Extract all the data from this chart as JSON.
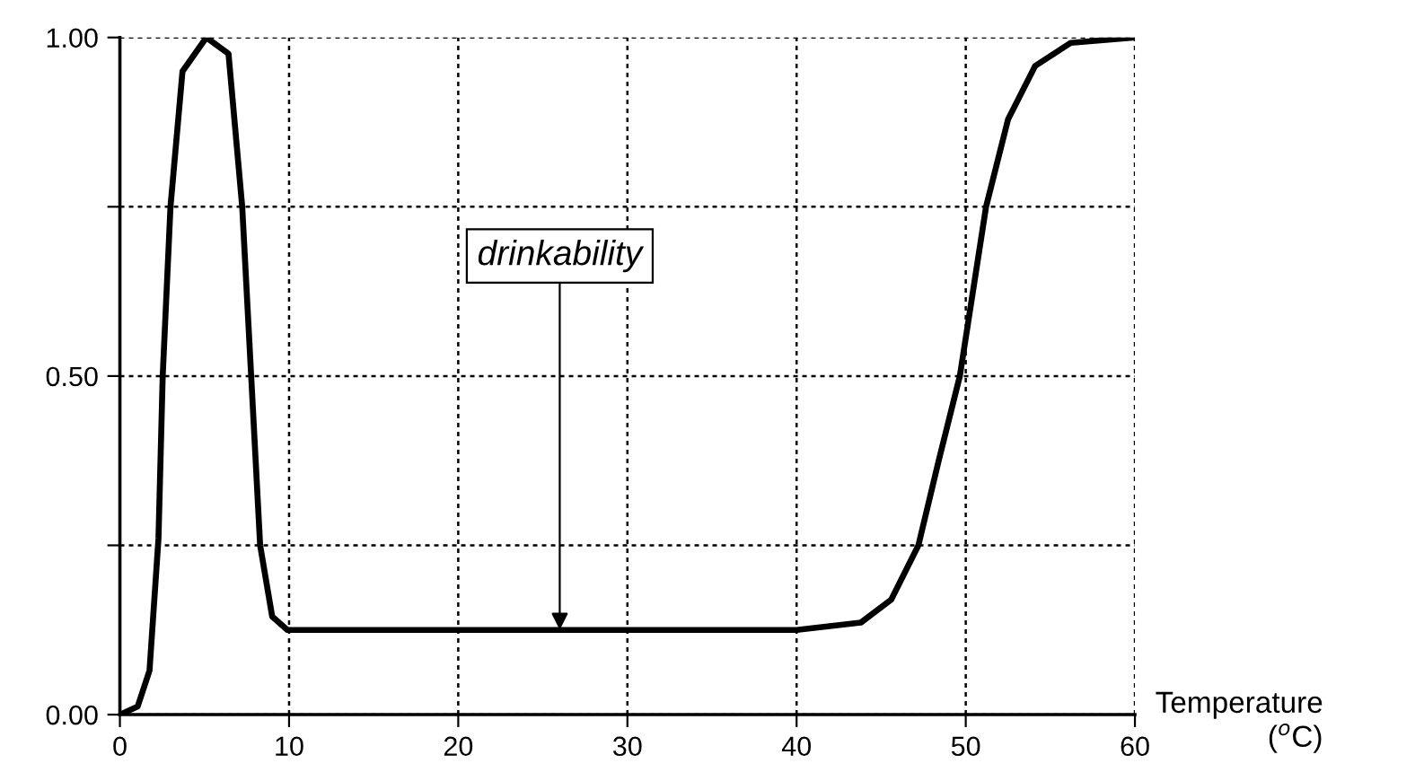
{
  "chart_data": {
    "type": "line",
    "xlabel": "Temperature\n($^{o}$C)",
    "x": [
      0,
      1.05,
      1.75,
      2.28,
      2.53,
      2.99,
      3.7,
      5.11,
      6.42,
      7.23,
      7.76,
      8.29,
      9.0,
      9.9,
      20,
      30,
      40,
      43.8,
      45.6,
      47.2,
      48.4,
      49.65,
      51.2,
      52.5,
      54.1,
      56.2,
      60
    ],
    "series": [
      {
        "color": "#000000",
        "values": [
          0,
          0.012,
          0.065,
          0.26,
          0.5,
          0.75,
          0.95,
          1.0,
          0.976,
          0.75,
          0.5,
          0.25,
          0.145,
          0.125,
          0.125,
          0.125,
          0.125,
          0.136,
          0.17,
          0.25,
          0.375,
          0.5,
          0.75,
          0.879,
          0.958,
          0.992,
          1.0
        ]
      }
    ],
    "xlim": [
      0,
      60
    ],
    "xticks": [
      0,
      10,
      20,
      30,
      40,
      50,
      60
    ],
    "ylim": [
      0,
      1
    ],
    "yticks": [
      {
        "value": 0,
        "label": "0.00"
      },
      {
        "value": 0.25,
        "label": null
      },
      {
        "value": 0.5,
        "label": "0.50"
      },
      {
        "value": 0.75,
        "label": null
      },
      {
        "value": 1,
        "label": "1.00"
      }
    ],
    "annotations": [
      {
        "text": "drinkability",
        "x": 26,
        "y": 0.125
      }
    ],
    "grid": true,
    "marker": "none",
    "line_style": "solid"
  }
}
